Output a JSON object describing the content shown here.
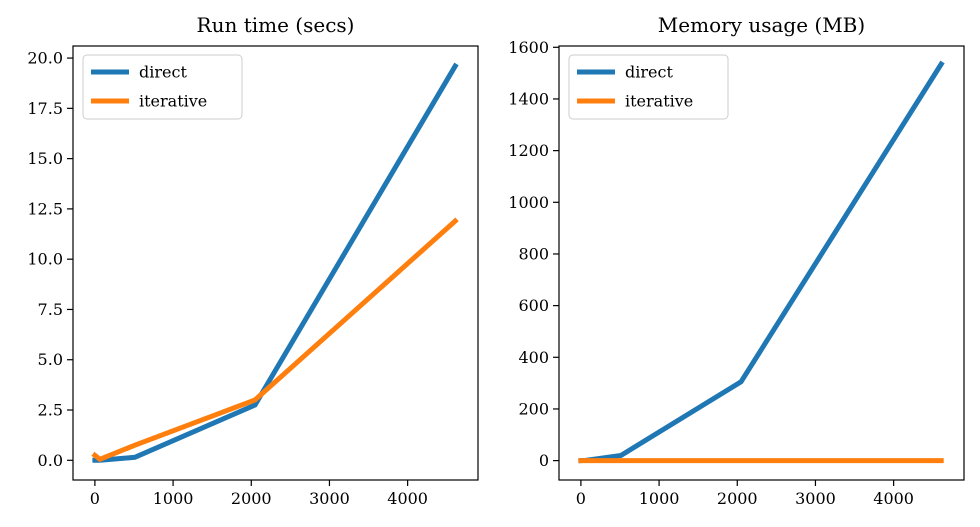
{
  "colors": {
    "direct": "#1f77b4",
    "iterative": "#ff7f0e"
  },
  "chart_data": [
    {
      "type": "line",
      "title": "Run time (secs)",
      "xlabel": "",
      "ylabel": "",
      "xlim": [
        -280,
        4900
      ],
      "ylim": [
        -0.98,
        20.6
      ],
      "xticks": [
        0,
        1000,
        2000,
        3000,
        4000
      ],
      "yticks": [
        0.0,
        2.5,
        5.0,
        7.5,
        10.0,
        12.5,
        15.0,
        17.5,
        20.0
      ],
      "xtick_labels": [
        "0",
        "1000",
        "2000",
        "3000",
        "4000"
      ],
      "ytick_labels": [
        "0.0",
        "2.5",
        "5.0",
        "7.5",
        "10.0",
        "12.5",
        "15.0",
        "17.5",
        "20.0"
      ],
      "grid": false,
      "legend": "top-left",
      "series": [
        {
          "name": "direct",
          "x": [
            0,
            64,
            512,
            2048,
            4608
          ],
          "y": [
            0.0,
            0.0,
            0.15,
            2.75,
            19.6
          ]
        },
        {
          "name": "iterative",
          "x": [
            0,
            64,
            512,
            2048,
            4608
          ],
          "y": [
            0.25,
            0.05,
            0.75,
            3.0,
            11.9
          ]
        }
      ]
    },
    {
      "type": "line",
      "title": "Memory usage (MB)",
      "xlabel": "",
      "ylabel": "",
      "xlim": [
        -280,
        4900
      ],
      "ylim": [
        -75,
        1605
      ],
      "xticks": [
        0,
        1000,
        2000,
        3000,
        4000
      ],
      "yticks": [
        0,
        200,
        400,
        600,
        800,
        1000,
        1200,
        1400,
        1600
      ],
      "xtick_labels": [
        "0",
        "1000",
        "2000",
        "3000",
        "4000"
      ],
      "ytick_labels": [
        "0",
        "200",
        "400",
        "600",
        "800",
        "1000",
        "1200",
        "1400",
        "1600"
      ],
      "grid": false,
      "legend": "top-left",
      "series": [
        {
          "name": "direct",
          "x": [
            0,
            64,
            512,
            2048,
            4608
          ],
          "y": [
            0,
            1,
            20,
            305,
            1535
          ]
        },
        {
          "name": "iterative",
          "x": [
            0,
            64,
            512,
            2048,
            4608
          ],
          "y": [
            0,
            0,
            0,
            0,
            0
          ]
        }
      ]
    }
  ]
}
